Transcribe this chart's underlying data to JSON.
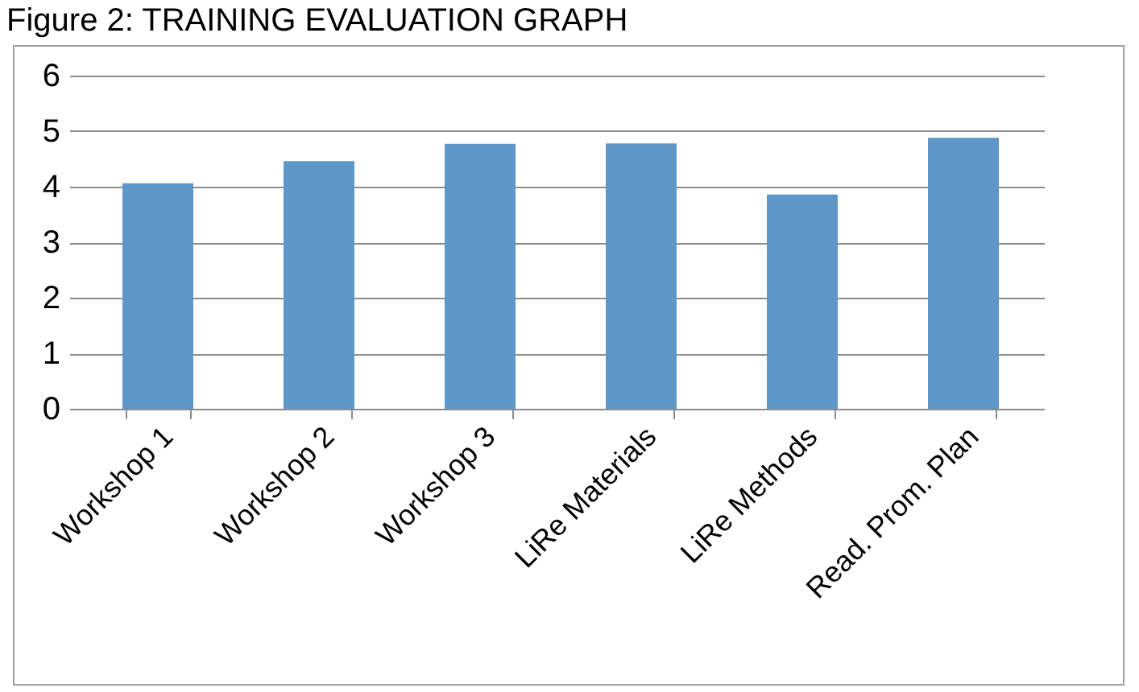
{
  "chart_data": {
    "type": "bar",
    "title": "Figure 2: TRAINING EVALUATION GRAPH",
    "categories": [
      "Workshop 1",
      "Workshop 2",
      "Workshop 3",
      "LiRe Materials",
      "LiRe Methods",
      "Read. Prom. Plan"
    ],
    "values": [
      4.06,
      4.46,
      4.77,
      4.78,
      3.86,
      4.88
    ],
    "color": "#6097c9",
    "ylim": [
      0,
      6
    ],
    "yticks": [
      0,
      1,
      2,
      3,
      4,
      5,
      6
    ],
    "grid": "y"
  }
}
